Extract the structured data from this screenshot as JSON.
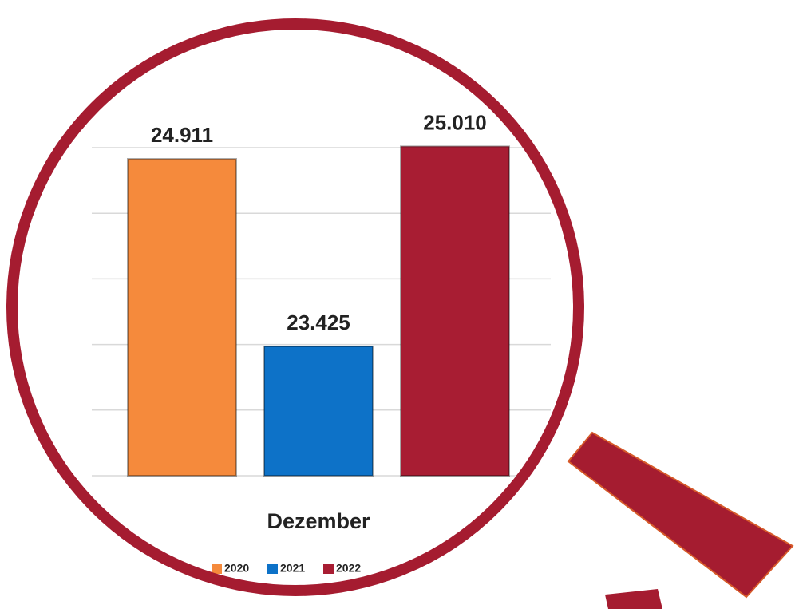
{
  "chart_data": {
    "type": "bar",
    "categories": [
      "Dezember"
    ],
    "series": [
      {
        "name": "2020",
        "color": "#f58a3c",
        "values": [
          24911
        ],
        "value_labels": [
          "24.911"
        ]
      },
      {
        "name": "2021",
        "color": "#0d72c8",
        "values": [
          23425
        ],
        "value_labels": [
          "23.425"
        ]
      },
      {
        "name": "2022",
        "color": "#a81d33",
        "values": [
          25010
        ],
        "value_labels": [
          "25.010"
        ]
      }
    ],
    "ylim": [
      22400,
      25000
    ],
    "yticks": [
      22400,
      22920,
      23440,
      23960,
      24480,
      25000
    ],
    "grid": true,
    "legend": "bottom"
  }
}
